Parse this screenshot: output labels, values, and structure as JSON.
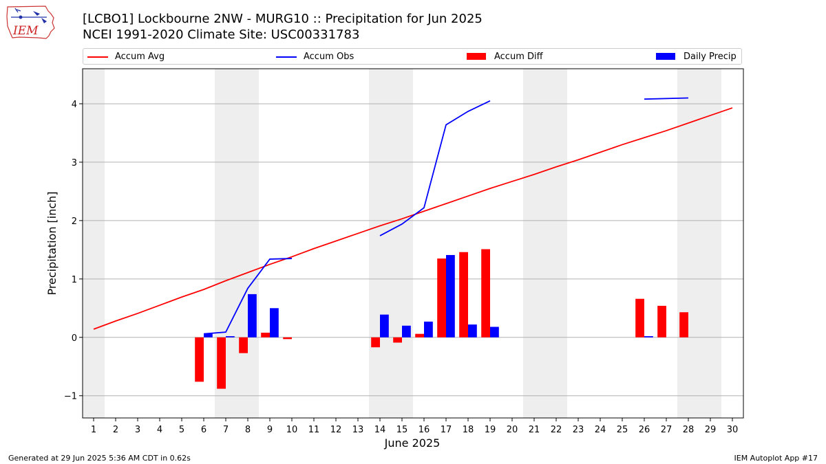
{
  "header": {
    "title_line1": "[LCBO1] Lockbourne 2NW - MURG10 :: Precipitation for Jun 2025",
    "title_line2": "NCEI 1991-2020 Climate Site: USC00331783",
    "logo_text": "IEM"
  },
  "footer": {
    "left": "Generated at 29 Jun 2025 5:36 AM CDT in 0.62s",
    "right": "IEM Autoplot App #17"
  },
  "colors": {
    "accum_avg": "#ff0000",
    "accum_obs": "#0000ff",
    "accum_diff": "#ff0000",
    "daily_precip": "#0000ff",
    "weekend_shade": "#eeeeee",
    "grid": "#b0b0b0"
  },
  "chart_data": {
    "type": "bar",
    "title": "[LCBO1] Lockbourne 2NW - MURG10 :: Precipitation for Jun 2025",
    "subtitle": "NCEI 1991-2020 Climate Site: USC00331783",
    "xlabel": "June 2025",
    "ylabel": "Precipitation [inch]",
    "x": [
      1,
      2,
      3,
      4,
      5,
      6,
      7,
      8,
      9,
      10,
      11,
      12,
      13,
      14,
      15,
      16,
      17,
      18,
      19,
      20,
      21,
      22,
      23,
      24,
      25,
      26,
      27,
      28,
      29,
      30
    ],
    "xlim": [
      0.5,
      30.5
    ],
    "ylim": [
      -1.38,
      4.6
    ],
    "yticks": [
      -1,
      0,
      1,
      2,
      3,
      4
    ],
    "ytick_labels": [
      "−1",
      "0",
      "1",
      "2",
      "3",
      "4"
    ],
    "grid": "horizontal",
    "legend_position": "top",
    "shaded_days": [
      1,
      7,
      8,
      14,
      15,
      21,
      22,
      28,
      29
    ],
    "series": [
      {
        "name": "Accum Avg",
        "kind": "line",
        "values": [
          0.14,
          0.28,
          0.41,
          0.55,
          0.69,
          0.82,
          0.97,
          1.11,
          1.25,
          1.38,
          1.52,
          1.65,
          1.78,
          1.91,
          2.03,
          2.16,
          2.29,
          2.42,
          2.55,
          2.67,
          2.79,
          2.92,
          3.04,
          3.17,
          3.3,
          3.42,
          3.54,
          3.67,
          3.8,
          3.93
        ]
      },
      {
        "name": "Accum Obs",
        "kind": "line",
        "segments": [
          {
            "x": [
              6,
              7,
              8,
              9,
              10
            ],
            "y": [
              0.06,
              0.09,
              0.84,
              1.34,
              1.35
            ]
          },
          {
            "x": [
              14,
              15,
              16,
              17,
              18,
              19
            ],
            "y": [
              1.74,
              1.94,
              2.22,
              3.64,
              3.87,
              4.05
            ]
          },
          {
            "x": [
              26,
              28
            ],
            "y": [
              4.08,
              4.1
            ]
          }
        ]
      },
      {
        "name": "Accum Diff",
        "kind": "bar",
        "x": [
          6,
          7,
          8,
          9,
          10,
          14,
          15,
          16,
          17,
          18,
          19,
          26,
          27,
          28
        ],
        "values": [
          -0.76,
          -0.88,
          -0.27,
          0.08,
          -0.03,
          -0.17,
          -0.09,
          0.06,
          1.35,
          1.46,
          1.51,
          0.66,
          0.54,
          0.43
        ]
      },
      {
        "name": "Daily Precip",
        "kind": "bar",
        "x": [
          6,
          7,
          8,
          9,
          14,
          15,
          16,
          17,
          18,
          19,
          26
        ],
        "values": [
          0.06,
          0.02,
          0.74,
          0.5,
          0.39,
          0.2,
          0.27,
          1.41,
          0.22,
          0.18,
          0.02
        ]
      }
    ]
  }
}
